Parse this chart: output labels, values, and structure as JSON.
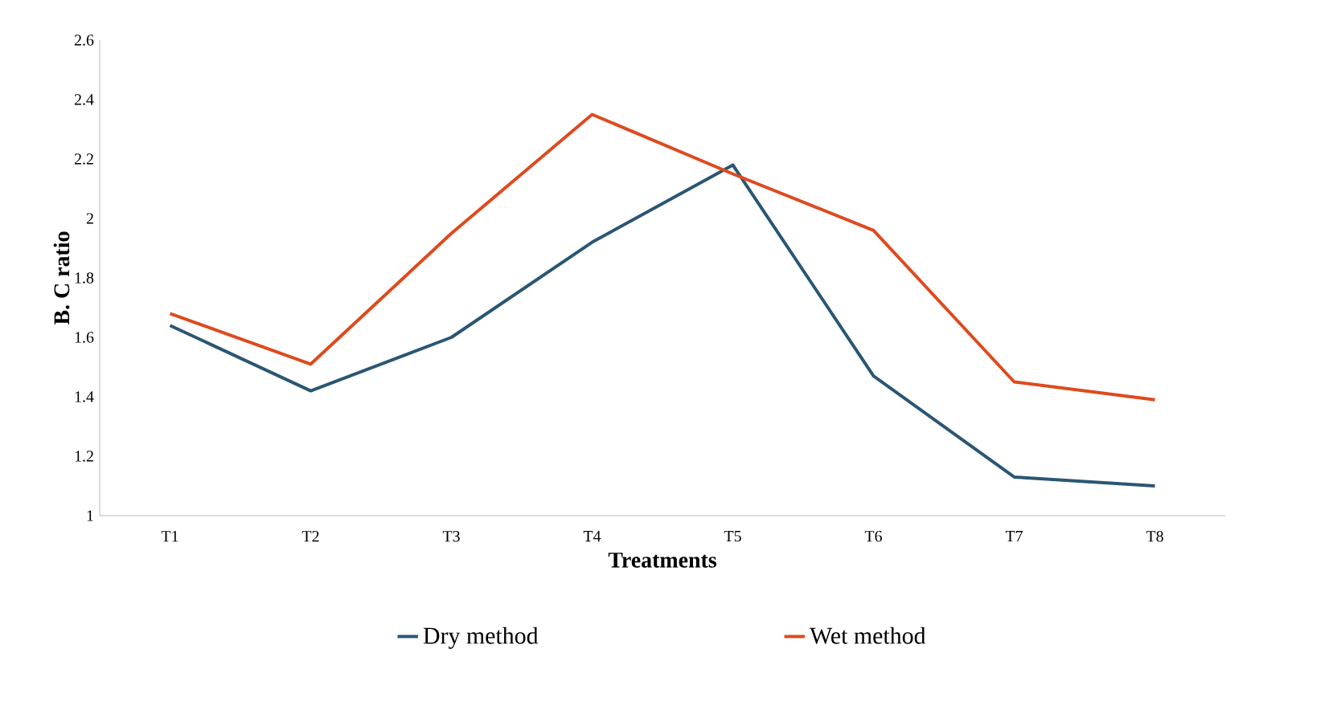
{
  "chart_data": {
    "type": "line",
    "xlabel": "Treatments",
    "ylabel": "B. C ratio",
    "categories": [
      "T1",
      "T2",
      "T3",
      "T4",
      "T5",
      "T6",
      "T7",
      "T8"
    ],
    "series": [
      {
        "name": "Dry method",
        "color": "#2a5673",
        "values": [
          1.64,
          1.42,
          1.6,
          1.92,
          2.18,
          1.47,
          1.13,
          1.1
        ]
      },
      {
        "name": "Wet method",
        "color": "#de4a1e",
        "values": [
          1.68,
          1.51,
          1.95,
          2.35,
          2.15,
          1.96,
          1.45,
          1.39
        ]
      }
    ],
    "ylim": [
      1,
      2.6
    ],
    "yticks": [
      1,
      1.2,
      1.4,
      1.6,
      1.8,
      2,
      2.2,
      2.4,
      2.6
    ],
    "grid": false,
    "legend": "bottom",
    "marker": "none",
    "line_style": "solid"
  }
}
